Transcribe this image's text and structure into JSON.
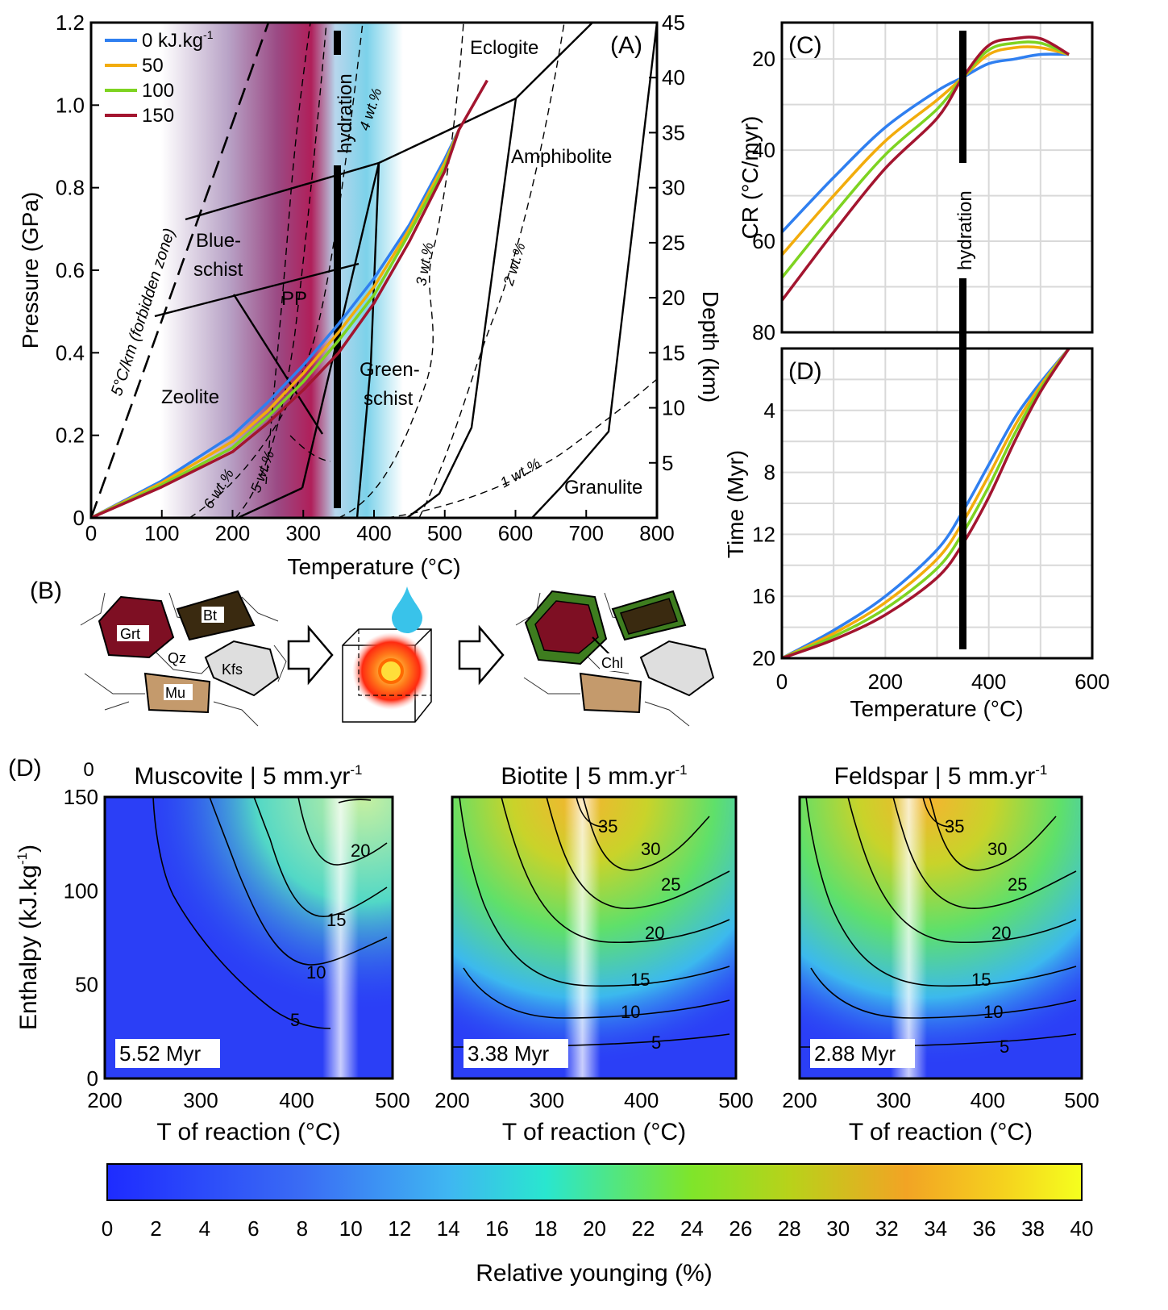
{
  "panels": {
    "A": {
      "label": "(A)",
      "xlabel": "Temperature (°C)",
      "ylabel": "Pressure (GPa)",
      "y2label": "Depth (km)",
      "xticks": [
        "0",
        "100",
        "200",
        "300",
        "400",
        "500",
        "600",
        "700",
        "800"
      ],
      "yticks": [
        "0",
        "0.2",
        "0.4",
        "0.6",
        "0.8",
        "1.0",
        "1.2"
      ],
      "y2ticks": [
        "5",
        "10",
        "15",
        "20",
        "25",
        "30",
        "35",
        "40",
        "45"
      ],
      "legend": [
        {
          "label": "0 kJ.kg",
          "sup": "-1",
          "color": "#2f7ff0"
        },
        {
          "label": "50",
          "sup": "",
          "color": "#f2ac0c"
        },
        {
          "label": "100",
          "sup": "",
          "color": "#7ed321"
        },
        {
          "label": "150",
          "sup": "",
          "color": "#a3152f"
        }
      ],
      "facies": [
        "Eclogite",
        "Amphibolite",
        "Blue-",
        "schist",
        "PP",
        "Zeolite",
        "Green-",
        "schist",
        "Granulite"
      ],
      "annotations": [
        "hydration",
        "5°C/km (forbidden zone)",
        "4 wt.%",
        "3 wt.%",
        "2 wt.%",
        "1 wt.%",
        "5 wt.%",
        "6 wt.%"
      ]
    },
    "B": {
      "label": "(B)",
      "minerals": [
        "Grt",
        "Bt",
        "Qz",
        "Kfs",
        "Mu",
        "Chl"
      ]
    },
    "C": {
      "label": "(C)",
      "ylabel": "CR (°C/myr)",
      "yticks": [
        "20",
        "40",
        "60",
        "80"
      ],
      "annotation": "hydration"
    },
    "D": {
      "label": "(D)",
      "ylabel": "Time (Myr)",
      "xlabel": "Temperature (°C)",
      "xticks": [
        "0",
        "200",
        "400",
        "600"
      ],
      "yticks": [
        "4",
        "8",
        "12",
        "16",
        "20"
      ]
    },
    "E": {
      "label": "(D)",
      "ylabel": "Enthalpy (kJ.kg",
      "ylabel_sup": "-1",
      "ylabel_close": ")",
      "xlabel": "T of reaction (°C)",
      "xticks": [
        "200",
        "300",
        "400",
        "500"
      ],
      "yticks": [
        "0",
        "50",
        "100",
        "150"
      ],
      "top_tick": "0",
      "subplots": [
        {
          "title": "Muscovite | 5 mm.yr",
          "box": "5.52 Myr",
          "contours": [
            "20",
            "15",
            "10",
            "5"
          ]
        },
        {
          "title": "Biotite | 5 mm.yr",
          "box": "3.38 Myr",
          "contours": [
            "35",
            "30",
            "25",
            "20",
            "15",
            "10",
            "5"
          ]
        },
        {
          "title": "Feldspar | 5 mm.yr",
          "box": "2.88 Myr",
          "contours": [
            "35",
            "30",
            "25",
            "20",
            "15",
            "10",
            "5"
          ]
        }
      ],
      "title_sup": "-1"
    },
    "colorbar": {
      "label": "Relative younging (%)",
      "ticks": [
        "0",
        "2",
        "4",
        "6",
        "8",
        "10",
        "12",
        "14",
        "16",
        "18",
        "20",
        "22",
        "24",
        "26",
        "28",
        "30",
        "32",
        "34",
        "36",
        "38",
        "40"
      ]
    }
  },
  "chart_data": [
    {
      "type": "line",
      "panel": "A",
      "xlim": [
        0,
        800
      ],
      "ylim": [
        0,
        1.2
      ],
      "y2lim": [
        0,
        45
      ],
      "series": [
        {
          "name": "0 kJ.kg-1",
          "x": [
            0,
            100,
            200,
            250,
            300,
            350,
            400,
            450,
            500,
            520
          ],
          "y": [
            0,
            0.09,
            0.2,
            0.28,
            0.37,
            0.47,
            0.58,
            0.71,
            0.87,
            0.94
          ]
        },
        {
          "name": "50",
          "x": [
            0,
            100,
            200,
            250,
            300,
            350,
            400,
            450,
            500,
            520
          ],
          "y": [
            0,
            0.085,
            0.185,
            0.26,
            0.35,
            0.45,
            0.56,
            0.7,
            0.86,
            0.94
          ]
        },
        {
          "name": "100",
          "x": [
            0,
            100,
            200,
            250,
            300,
            350,
            400,
            450,
            500,
            520
          ],
          "y": [
            0,
            0.08,
            0.17,
            0.245,
            0.33,
            0.43,
            0.54,
            0.69,
            0.85,
            0.94
          ]
        },
        {
          "name": "150",
          "x": [
            0,
            100,
            200,
            250,
            300,
            350,
            400,
            450,
            500,
            520,
            560
          ],
          "y": [
            0,
            0.075,
            0.16,
            0.23,
            0.31,
            0.4,
            0.52,
            0.67,
            0.84,
            0.94,
            1.06
          ]
        }
      ]
    },
    {
      "type": "line",
      "panel": "C",
      "xlim": [
        0,
        600
      ],
      "ylim": [
        80,
        12
      ],
      "series": [
        {
          "name": "0",
          "x": [
            0,
            100,
            200,
            300,
            350,
            400,
            450,
            500,
            555
          ],
          "y": [
            58,
            46,
            35,
            27,
            24,
            21,
            20,
            19,
            19
          ]
        },
        {
          "name": "50",
          "x": [
            0,
            100,
            200,
            300,
            350,
            400,
            450,
            500,
            555
          ],
          "y": [
            63,
            50,
            38,
            29,
            24,
            19,
            17.5,
            17.5,
            19
          ]
        },
        {
          "name": "100",
          "x": [
            0,
            100,
            200,
            300,
            350,
            400,
            450,
            500,
            555
          ],
          "y": [
            68,
            54,
            41,
            31,
            24,
            18,
            16.5,
            16.5,
            19
          ]
        },
        {
          "name": "150",
          "x": [
            0,
            100,
            200,
            300,
            350,
            400,
            450,
            500,
            555
          ],
          "y": [
            73,
            58,
            44,
            33,
            24,
            17,
            15.5,
            15.5,
            19
          ]
        }
      ]
    },
    {
      "type": "line",
      "panel": "D",
      "xlim": [
        0,
        600
      ],
      "ylim": [
        20,
        0
      ],
      "series": [
        {
          "name": "0",
          "x": [
            0,
            100,
            200,
            300,
            350,
            400,
            450,
            500,
            555
          ],
          "y": [
            20,
            18.2,
            16,
            13,
            10.5,
            7.5,
            4.5,
            2.2,
            0
          ]
        },
        {
          "name": "50",
          "x": [
            0,
            100,
            200,
            300,
            350,
            400,
            450,
            500,
            555
          ],
          "y": [
            20,
            18.4,
            16.4,
            13.6,
            11.2,
            8.2,
            5,
            2.4,
            0
          ]
        },
        {
          "name": "100",
          "x": [
            0,
            100,
            200,
            300,
            350,
            400,
            450,
            500,
            555
          ],
          "y": [
            20,
            18.6,
            16.8,
            14.2,
            11.9,
            8.9,
            5.5,
            2.6,
            0
          ]
        },
        {
          "name": "150",
          "x": [
            0,
            100,
            200,
            300,
            350,
            400,
            450,
            500,
            555
          ],
          "y": [
            20,
            18.8,
            17.2,
            14.8,
            12.6,
            9.6,
            6,
            2.8,
            0
          ]
        }
      ]
    },
    {
      "type": "heatmap",
      "panel": "E",
      "xlim": [
        200,
        500
      ],
      "ylim": [
        0,
        150
      ],
      "zlim": [
        0,
        40
      ]
    }
  ]
}
